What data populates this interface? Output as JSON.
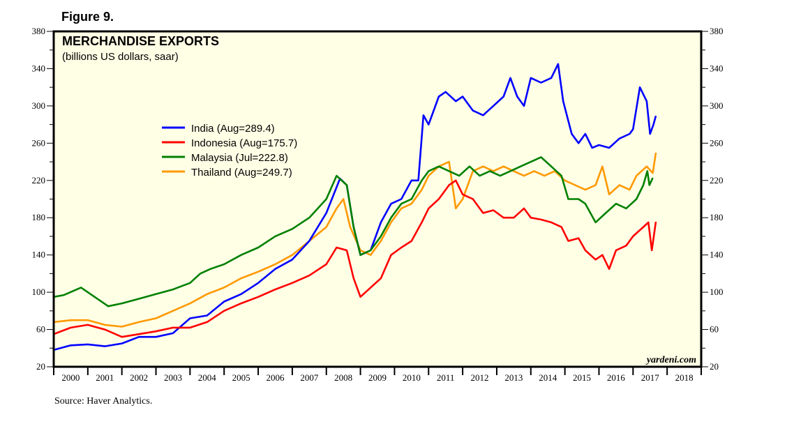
{
  "figure_label": "Figure 9.",
  "source": "Source: Haver Analytics.",
  "chart_data": {
    "type": "line",
    "title": "MERCHANDISE EXPORTS",
    "subtitle": "(billions US dollars, saar)",
    "watermark": "yardeni.com",
    "ylim": [
      20,
      380
    ],
    "yticks": [
      20,
      60,
      100,
      140,
      180,
      220,
      260,
      300,
      340,
      380
    ],
    "xlim": [
      2000,
      2019
    ],
    "xtick_labels": [
      "2000",
      "2001",
      "2002",
      "2003",
      "2004",
      "2005",
      "2006",
      "2007",
      "2008",
      "2009",
      "2010",
      "2011",
      "2012",
      "2013",
      "2014",
      "2015",
      "2016",
      "2017",
      "2018"
    ],
    "background": "#FFFFE6",
    "legend_placement": "upper-left",
    "series": [
      {
        "name": "India (Aug=289.4)",
        "color": "#0000FF",
        "x": [
          2000,
          2000.5,
          2001,
          2001.5,
          2002,
          2002.5,
          2003,
          2003.5,
          2004,
          2004.5,
          2005,
          2005.5,
          2006,
          2006.5,
          2007,
          2007.5,
          2008,
          2008.4,
          2008.6,
          2008.8,
          2009,
          2009.3,
          2009.6,
          2009.9,
          2010.2,
          2010.5,
          2010.7,
          2010.85,
          2011,
          2011.3,
          2011.5,
          2011.8,
          2012,
          2012.3,
          2012.6,
          2012.9,
          2013.2,
          2013.4,
          2013.6,
          2013.8,
          2014,
          2014.3,
          2014.6,
          2014.8,
          2014.95,
          2015.2,
          2015.4,
          2015.6,
          2015.8,
          2016,
          2016.3,
          2016.6,
          2016.9,
          2017,
          2017.2,
          2017.4,
          2017.5,
          2017.6,
          2017.67
        ],
        "y": [
          38,
          43,
          44,
          42,
          45,
          52,
          52,
          56,
          72,
          75,
          90,
          98,
          110,
          125,
          135,
          155,
          185,
          222,
          215,
          170,
          140,
          145,
          175,
          195,
          200,
          220,
          220,
          290,
          280,
          310,
          315,
          305,
          310,
          295,
          290,
          300,
          310,
          330,
          310,
          300,
          330,
          325,
          330,
          345,
          305,
          270,
          260,
          270,
          255,
          258,
          255,
          265,
          270,
          275,
          320,
          305,
          270,
          280,
          289.4
        ]
      },
      {
        "name": "Indonesia (Aug=175.7)",
        "color": "#FF0000",
        "x": [
          2000,
          2000.5,
          2001,
          2001.5,
          2002,
          2002.5,
          2003,
          2003.5,
          2004,
          2004.5,
          2005,
          2005.5,
          2006,
          2006.5,
          2007,
          2007.5,
          2008,
          2008.3,
          2008.6,
          2008.8,
          2009,
          2009.3,
          2009.6,
          2009.9,
          2010.2,
          2010.5,
          2010.8,
          2011,
          2011.3,
          2011.6,
          2011.8,
          2012,
          2012.3,
          2012.6,
          2012.9,
          2013.2,
          2013.5,
          2013.8,
          2014,
          2014.3,
          2014.6,
          2014.9,
          2015.1,
          2015.4,
          2015.6,
          2015.9,
          2016.1,
          2016.3,
          2016.5,
          2016.8,
          2017,
          2017.3,
          2017.45,
          2017.55,
          2017.67
        ],
        "y": [
          55,
          62,
          65,
          60,
          52,
          55,
          58,
          62,
          62,
          68,
          80,
          88,
          95,
          103,
          110,
          118,
          130,
          148,
          145,
          115,
          95,
          105,
          115,
          140,
          148,
          155,
          175,
          190,
          200,
          215,
          220,
          205,
          200,
          185,
          188,
          180,
          180,
          190,
          180,
          178,
          175,
          170,
          155,
          158,
          145,
          135,
          140,
          125,
          145,
          150,
          160,
          170,
          175,
          145,
          175.7
        ]
      },
      {
        "name": "Malaysia (Jul=222.8)",
        "color": "#008000",
        "x": [
          2000,
          2000.3,
          2000.8,
          2001.2,
          2001.6,
          2002,
          2002.5,
          2003,
          2003.5,
          2004,
          2004.3,
          2004.6,
          2005,
          2005.5,
          2006,
          2006.5,
          2007,
          2007.5,
          2008,
          2008.3,
          2008.6,
          2008.8,
          2009,
          2009.3,
          2009.6,
          2009.9,
          2010.2,
          2010.5,
          2010.8,
          2011,
          2011.3,
          2011.6,
          2011.9,
          2012.2,
          2012.5,
          2012.8,
          2013.1,
          2013.4,
          2013.7,
          2014,
          2014.3,
          2014.6,
          2014.9,
          2015.1,
          2015.4,
          2015.6,
          2015.9,
          2016.2,
          2016.5,
          2016.8,
          2017.1,
          2017.3,
          2017.42,
          2017.48,
          2017.58
        ],
        "y": [
          95,
          97,
          105,
          95,
          85,
          88,
          93,
          98,
          103,
          110,
          120,
          125,
          130,
          140,
          148,
          160,
          168,
          180,
          200,
          225,
          215,
          170,
          140,
          145,
          160,
          180,
          195,
          200,
          220,
          230,
          235,
          230,
          225,
          235,
          225,
          230,
          225,
          230,
          235,
          240,
          245,
          235,
          225,
          200,
          200,
          195,
          175,
          185,
          195,
          190,
          200,
          215,
          230,
          215,
          222.8
        ]
      },
      {
        "name": "Thailand (Aug=249.7)",
        "color": "#FF9900",
        "x": [
          2000,
          2000.5,
          2001,
          2001.5,
          2002,
          2002.5,
          2003,
          2003.5,
          2004,
          2004.5,
          2005,
          2005.5,
          2006,
          2006.5,
          2007,
          2007.5,
          2008,
          2008.3,
          2008.5,
          2008.7,
          2009,
          2009.3,
          2009.6,
          2009.9,
          2010.2,
          2010.5,
          2010.8,
          2011,
          2011.3,
          2011.6,
          2011.8,
          2012,
          2012.3,
          2012.6,
          2012.9,
          2013.2,
          2013.5,
          2013.8,
          2014.1,
          2014.4,
          2014.7,
          2015,
          2015.3,
          2015.6,
          2015.9,
          2016.1,
          2016.3,
          2016.6,
          2016.9,
          2017.1,
          2017.4,
          2017.58,
          2017.67
        ],
        "y": [
          68,
          70,
          70,
          65,
          63,
          68,
          72,
          80,
          88,
          98,
          105,
          115,
          122,
          130,
          140,
          155,
          170,
          190,
          200,
          170,
          145,
          140,
          155,
          175,
          190,
          195,
          210,
          225,
          235,
          240,
          190,
          200,
          230,
          235,
          230,
          235,
          230,
          225,
          230,
          225,
          230,
          220,
          215,
          210,
          215,
          235,
          205,
          215,
          210,
          225,
          235,
          228,
          249.7
        ]
      }
    ]
  }
}
